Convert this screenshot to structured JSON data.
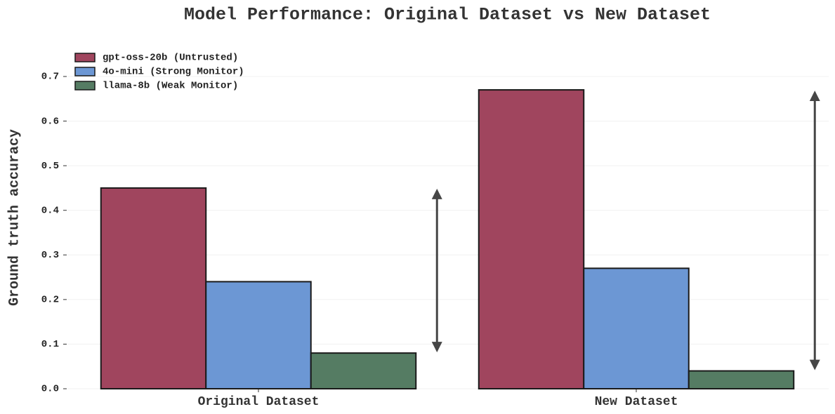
{
  "chart_data": {
    "type": "bar",
    "title": "Model Performance: Original Dataset vs New Dataset",
    "y_label": "Ground truth accuracy",
    "categories": [
      "Original Dataset",
      "New Dataset"
    ],
    "series": [
      {
        "name": "gpt-oss-20b (Untrusted)",
        "color": "#a0455e",
        "values": [
          0.45,
          0.67
        ]
      },
      {
        "name": "4o-mini (Strong Monitor)",
        "color": "#6c97d4",
        "values": [
          0.24,
          0.27
        ]
      },
      {
        "name": "llama-8b (Weak Monitor)",
        "color": "#557c63",
        "values": [
          0.08,
          0.04
        ]
      }
    ],
    "ylim": [
      0,
      0.7
    ],
    "yticks": [
      {
        "value": 0,
        "label": "0.0"
      },
      0.1,
      0.2,
      0.3,
      0.4,
      0.5,
      0.6,
      0.7
    ],
    "grid": true,
    "legend": "upper left"
  }
}
